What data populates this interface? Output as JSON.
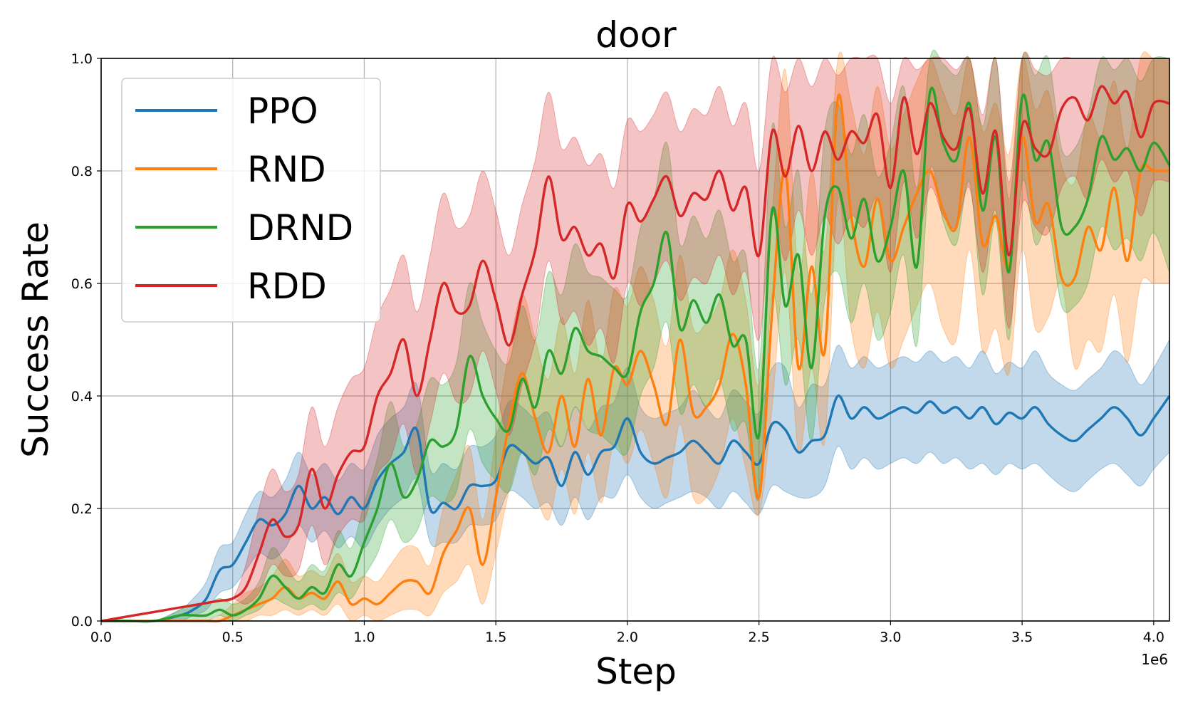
{
  "chart_data": {
    "type": "line",
    "title": "door",
    "xlabel": "Step",
    "ylabel": "Success Rate",
    "x_offset_label": "1e6",
    "xlim": [
      0,
      4.06
    ],
    "ylim": [
      0,
      1.0
    ],
    "x_ticks": [
      0.0,
      0.5,
      1.0,
      1.5,
      2.0,
      2.5,
      3.0,
      3.5,
      4.0
    ],
    "x_tick_labels": [
      "0.0",
      "0.5",
      "1.0",
      "1.5",
      "2.0",
      "2.5",
      "3.0",
      "3.5",
      "4.0"
    ],
    "y_ticks": [
      0.0,
      0.2,
      0.4,
      0.6,
      0.8,
      1.0
    ],
    "y_tick_labels": [
      "0.0",
      "0.2",
      "0.4",
      "0.6",
      "0.8",
      "1.0"
    ],
    "grid": true,
    "legend_position": "top-left",
    "x": [
      0,
      0.1,
      0.2,
      0.3,
      0.35,
      0.4,
      0.45,
      0.5,
      0.55,
      0.6,
      0.65,
      0.7,
      0.75,
      0.8,
      0.85,
      0.9,
      0.95,
      1.0,
      1.05,
      1.1,
      1.15,
      1.2,
      1.25,
      1.3,
      1.35,
      1.4,
      1.45,
      1.5,
      1.55,
      1.6,
      1.65,
      1.7,
      1.75,
      1.8,
      1.85,
      1.9,
      1.95,
      2.0,
      2.05,
      2.1,
      2.15,
      2.2,
      2.25,
      2.3,
      2.35,
      2.4,
      2.45,
      2.5,
      2.55,
      2.6,
      2.65,
      2.7,
      2.75,
      2.8,
      2.85,
      2.9,
      2.95,
      3.0,
      3.05,
      3.1,
      3.15,
      3.2,
      3.25,
      3.3,
      3.35,
      3.4,
      3.45,
      3.5,
      3.55,
      3.6,
      3.65,
      3.7,
      3.75,
      3.8,
      3.85,
      3.9,
      3.95,
      4.0,
      4.06
    ],
    "series": [
      {
        "name": "PPO",
        "color": "#1f77b4",
        "values": [
          0,
          0,
          0,
          0.01,
          0.02,
          0.04,
          0.09,
          0.1,
          0.14,
          0.18,
          0.17,
          0.19,
          0.24,
          0.2,
          0.22,
          0.19,
          0.22,
          0.2,
          0.25,
          0.28,
          0.3,
          0.34,
          0.2,
          0.21,
          0.2,
          0.24,
          0.24,
          0.25,
          0.31,
          0.3,
          0.28,
          0.29,
          0.24,
          0.3,
          0.26,
          0.3,
          0.31,
          0.36,
          0.3,
          0.28,
          0.29,
          0.3,
          0.32,
          0.3,
          0.28,
          0.32,
          0.3,
          0.28,
          0.35,
          0.34,
          0.3,
          0.32,
          0.33,
          0.4,
          0.36,
          0.38,
          0.36,
          0.37,
          0.38,
          0.37,
          0.39,
          0.37,
          0.38,
          0.36,
          0.38,
          0.35,
          0.37,
          0.36,
          0.38,
          0.35,
          0.33,
          0.32,
          0.34,
          0.36,
          0.38,
          0.36,
          0.33,
          0.36,
          0.4
        ],
        "lower": [
          0,
          0,
          0,
          0,
          0.01,
          0.02,
          0.05,
          0.06,
          0.09,
          0.12,
          0.11,
          0.13,
          0.17,
          0.14,
          0.16,
          0.13,
          0.15,
          0.13,
          0.17,
          0.2,
          0.22,
          0.25,
          0.14,
          0.14,
          0.14,
          0.17,
          0.17,
          0.18,
          0.23,
          0.22,
          0.2,
          0.21,
          0.17,
          0.22,
          0.18,
          0.22,
          0.22,
          0.26,
          0.22,
          0.2,
          0.21,
          0.22,
          0.23,
          0.22,
          0.2,
          0.23,
          0.21,
          0.19,
          0.24,
          0.23,
          0.22,
          0.22,
          0.24,
          0.31,
          0.27,
          0.29,
          0.27,
          0.28,
          0.29,
          0.28,
          0.3,
          0.28,
          0.29,
          0.27,
          0.28,
          0.26,
          0.28,
          0.27,
          0.28,
          0.26,
          0.24,
          0.23,
          0.25,
          0.27,
          0.28,
          0.26,
          0.24,
          0.27,
          0.3
        ],
        "upper": [
          0,
          0,
          0,
          0.02,
          0.04,
          0.07,
          0.13,
          0.14,
          0.19,
          0.23,
          0.22,
          0.25,
          0.3,
          0.26,
          0.28,
          0.25,
          0.28,
          0.27,
          0.33,
          0.36,
          0.38,
          0.42,
          0.27,
          0.28,
          0.27,
          0.31,
          0.31,
          0.33,
          0.39,
          0.38,
          0.36,
          0.37,
          0.31,
          0.38,
          0.34,
          0.38,
          0.39,
          0.45,
          0.38,
          0.36,
          0.37,
          0.38,
          0.41,
          0.38,
          0.36,
          0.41,
          0.39,
          0.37,
          0.45,
          0.45,
          0.38,
          0.42,
          0.42,
          0.49,
          0.45,
          0.47,
          0.45,
          0.46,
          0.47,
          0.46,
          0.48,
          0.46,
          0.47,
          0.45,
          0.48,
          0.44,
          0.46,
          0.45,
          0.48,
          0.44,
          0.42,
          0.41,
          0.43,
          0.45,
          0.48,
          0.46,
          0.42,
          0.45,
          0.5
        ]
      },
      {
        "name": "RND",
        "color": "#ff7f0e",
        "values": [
          0,
          0,
          0,
          0,
          0,
          0,
          0,
          0.01,
          0.02,
          0.03,
          0.04,
          0.06,
          0.04,
          0.05,
          0.04,
          0.07,
          0.03,
          0.04,
          0.03,
          0.05,
          0.07,
          0.07,
          0.05,
          0.12,
          0.16,
          0.2,
          0.1,
          0.22,
          0.35,
          0.44,
          0.36,
          0.3,
          0.4,
          0.31,
          0.43,
          0.33,
          0.45,
          0.42,
          0.48,
          0.42,
          0.35,
          0.5,
          0.37,
          0.38,
          0.42,
          0.51,
          0.42,
          0.22,
          0.55,
          0.8,
          0.45,
          0.63,
          0.48,
          0.93,
          0.72,
          0.63,
          0.75,
          0.64,
          0.7,
          0.76,
          0.8,
          0.73,
          0.7,
          0.86,
          0.67,
          0.72,
          0.63,
          0.86,
          0.71,
          0.74,
          0.61,
          0.61,
          0.7,
          0.66,
          0.77,
          0.64,
          0.8,
          0.8,
          0.8
        ],
        "lower": [
          0,
          0,
          0,
          0,
          0,
          0,
          0,
          0,
          0,
          0.01,
          0.01,
          0.02,
          0.01,
          0.02,
          0.01,
          0.03,
          0,
          0.01,
          0,
          0.01,
          0.02,
          0.02,
          0.01,
          0.05,
          0.07,
          0.1,
          0.03,
          0.12,
          0.23,
          0.3,
          0.23,
          0.18,
          0.27,
          0.19,
          0.3,
          0.21,
          0.32,
          0.28,
          0.34,
          0.28,
          0.22,
          0.35,
          0.22,
          0.22,
          0.27,
          0.36,
          0.27,
          0.19,
          0.38,
          0.62,
          0.3,
          0.45,
          0.32,
          0.75,
          0.52,
          0.45,
          0.55,
          0.45,
          0.5,
          0.56,
          0.6,
          0.52,
          0.5,
          0.66,
          0.48,
          0.52,
          0.44,
          0.66,
          0.52,
          0.54,
          0.6,
          0.45,
          0.5,
          0.48,
          0.58,
          0.46,
          0.6,
          0.6,
          0.6
        ],
        "upper": [
          0,
          0,
          0,
          0,
          0,
          0,
          0.01,
          0.03,
          0.05,
          0.06,
          0.08,
          0.11,
          0.08,
          0.09,
          0.08,
          0.12,
          0.07,
          0.08,
          0.07,
          0.1,
          0.13,
          0.13,
          0.1,
          0.2,
          0.26,
          0.31,
          0.18,
          0.33,
          0.48,
          0.58,
          0.5,
          0.43,
          0.54,
          0.44,
          0.57,
          0.46,
          0.59,
          0.56,
          0.63,
          0.57,
          0.49,
          0.65,
          0.52,
          0.53,
          0.57,
          0.66,
          0.57,
          0.42,
          0.72,
          0.98,
          0.62,
          0.8,
          0.66,
          1.0,
          0.92,
          0.83,
          0.95,
          0.84,
          0.9,
          0.96,
          1.0,
          0.94,
          0.9,
          1.0,
          0.87,
          0.92,
          0.83,
          1.0,
          0.91,
          0.94,
          0.81,
          0.78,
          0.9,
          0.86,
          0.96,
          0.84,
          1.0,
          1.0,
          1.0
        ]
      },
      {
        "name": "DRND",
        "color": "#2ca02c",
        "values": [
          0,
          0,
          0,
          0.01,
          0.01,
          0.01,
          0.02,
          0.01,
          0.02,
          0.04,
          0.08,
          0.06,
          0.04,
          0.06,
          0.05,
          0.1,
          0.08,
          0.14,
          0.2,
          0.28,
          0.22,
          0.25,
          0.32,
          0.31,
          0.34,
          0.47,
          0.4,
          0.36,
          0.34,
          0.43,
          0.38,
          0.48,
          0.44,
          0.52,
          0.48,
          0.47,
          0.45,
          0.44,
          0.55,
          0.6,
          0.69,
          0.52,
          0.57,
          0.53,
          0.58,
          0.49,
          0.5,
          0.33,
          0.73,
          0.56,
          0.65,
          0.45,
          0.72,
          0.77,
          0.68,
          0.75,
          0.64,
          0.7,
          0.8,
          0.63,
          0.94,
          0.85,
          0.82,
          0.92,
          0.73,
          0.86,
          0.62,
          0.93,
          0.82,
          0.85,
          0.7,
          0.7,
          0.75,
          0.86,
          0.82,
          0.84,
          0.8,
          0.85,
          0.81
        ],
        "lower": [
          0,
          0,
          0,
          0,
          0,
          0,
          0.01,
          0,
          0.01,
          0.02,
          0.04,
          0.03,
          0.02,
          0.03,
          0.02,
          0.05,
          0.04,
          0.08,
          0.12,
          0.18,
          0.14,
          0.16,
          0.22,
          0.21,
          0.23,
          0.34,
          0.28,
          0.25,
          0.23,
          0.3,
          0.26,
          0.34,
          0.31,
          0.38,
          0.34,
          0.33,
          0.31,
          0.3,
          0.4,
          0.45,
          0.53,
          0.37,
          0.42,
          0.38,
          0.43,
          0.34,
          0.35,
          0.22,
          0.58,
          0.42,
          0.5,
          0.32,
          0.57,
          0.62,
          0.53,
          0.6,
          0.5,
          0.55,
          0.65,
          0.49,
          0.8,
          0.71,
          0.67,
          0.78,
          0.58,
          0.71,
          0.5,
          0.78,
          0.67,
          0.7,
          0.56,
          0.56,
          0.6,
          0.7,
          0.66,
          0.68,
          0.64,
          0.69,
          0.62
        ],
        "upper": [
          0,
          0,
          0,
          0.02,
          0.03,
          0.03,
          0.04,
          0.03,
          0.04,
          0.07,
          0.13,
          0.1,
          0.07,
          0.1,
          0.09,
          0.16,
          0.13,
          0.21,
          0.29,
          0.39,
          0.31,
          0.35,
          0.43,
          0.42,
          0.46,
          0.6,
          0.53,
          0.48,
          0.46,
          0.56,
          0.5,
          0.62,
          0.58,
          0.67,
          0.62,
          0.61,
          0.59,
          0.58,
          0.7,
          0.75,
          0.85,
          0.67,
          0.72,
          0.68,
          0.73,
          0.64,
          0.65,
          0.45,
          0.88,
          0.7,
          0.8,
          0.58,
          0.87,
          0.92,
          0.83,
          0.9,
          0.79,
          0.85,
          0.95,
          0.77,
          1.0,
          0.99,
          0.97,
          1.0,
          0.88,
          1.0,
          0.75,
          1.0,
          0.97,
          1.0,
          0.84,
          0.84,
          0.9,
          1.0,
          0.98,
          1.0,
          0.96,
          1.0,
          1.0
        ]
      },
      {
        "name": "RDD",
        "color": "#d62728",
        "values": [
          0,
          0.008,
          0.016,
          0.024,
          0.028,
          0.032,
          0.036,
          0.04,
          0.06,
          0.12,
          0.18,
          0.15,
          0.17,
          0.27,
          0.2,
          0.26,
          0.3,
          0.31,
          0.4,
          0.44,
          0.5,
          0.4,
          0.5,
          0.6,
          0.55,
          0.56,
          0.64,
          0.57,
          0.49,
          0.58,
          0.66,
          0.79,
          0.68,
          0.7,
          0.65,
          0.67,
          0.61,
          0.74,
          0.71,
          0.75,
          0.79,
          0.72,
          0.76,
          0.75,
          0.8,
          0.73,
          0.77,
          0.65,
          0.87,
          0.79,
          0.88,
          0.8,
          0.87,
          0.82,
          0.87,
          0.85,
          0.9,
          0.77,
          0.93,
          0.83,
          0.92,
          0.86,
          0.84,
          0.91,
          0.76,
          0.87,
          0.65,
          0.88,
          0.84,
          0.83,
          0.91,
          0.93,
          0.89,
          0.95,
          0.92,
          0.94,
          0.86,
          0.92,
          0.92
        ],
        "lower": [
          0,
          0.008,
          0.016,
          0.024,
          0.028,
          0.032,
          0.036,
          0.04,
          0.03,
          0.05,
          0.1,
          0.08,
          0.09,
          0.17,
          0.1,
          0.15,
          0.18,
          0.18,
          0.26,
          0.29,
          0.35,
          0.26,
          0.35,
          0.44,
          0.39,
          0.4,
          0.48,
          0.41,
          0.33,
          0.42,
          0.5,
          0.64,
          0.53,
          0.55,
          0.49,
          0.52,
          0.46,
          0.6,
          0.56,
          0.6,
          0.64,
          0.57,
          0.61,
          0.6,
          0.65,
          0.58,
          0.62,
          0.5,
          0.72,
          0.64,
          0.73,
          0.65,
          0.72,
          0.67,
          0.72,
          0.7,
          0.75,
          0.62,
          0.78,
          0.68,
          0.77,
          0.72,
          0.7,
          0.77,
          0.62,
          0.73,
          0.52,
          0.74,
          0.7,
          0.69,
          0.77,
          0.79,
          0.75,
          0.82,
          0.78,
          0.8,
          0.72,
          0.78,
          0.78
        ],
        "upper": [
          0,
          0.008,
          0.016,
          0.024,
          0.028,
          0.032,
          0.036,
          0.04,
          0.1,
          0.2,
          0.27,
          0.23,
          0.26,
          0.38,
          0.31,
          0.38,
          0.43,
          0.45,
          0.54,
          0.59,
          0.65,
          0.55,
          0.65,
          0.76,
          0.7,
          0.72,
          0.8,
          0.73,
          0.65,
          0.74,
          0.82,
          0.94,
          0.84,
          0.86,
          0.81,
          0.83,
          0.77,
          0.89,
          0.87,
          0.9,
          0.94,
          0.87,
          0.91,
          0.9,
          0.95,
          0.88,
          0.92,
          0.8,
          1.0,
          0.94,
          1.0,
          0.95,
          1.0,
          0.97,
          1.0,
          1.0,
          1.0,
          0.92,
          1.0,
          0.98,
          1.0,
          1.0,
          0.98,
          1.0,
          0.9,
          1.0,
          0.78,
          1.0,
          0.98,
          0.97,
          1.0,
          1.0,
          1.0,
          1.0,
          1.0,
          1.0,
          1.0,
          1.0,
          1.0
        ]
      }
    ]
  }
}
